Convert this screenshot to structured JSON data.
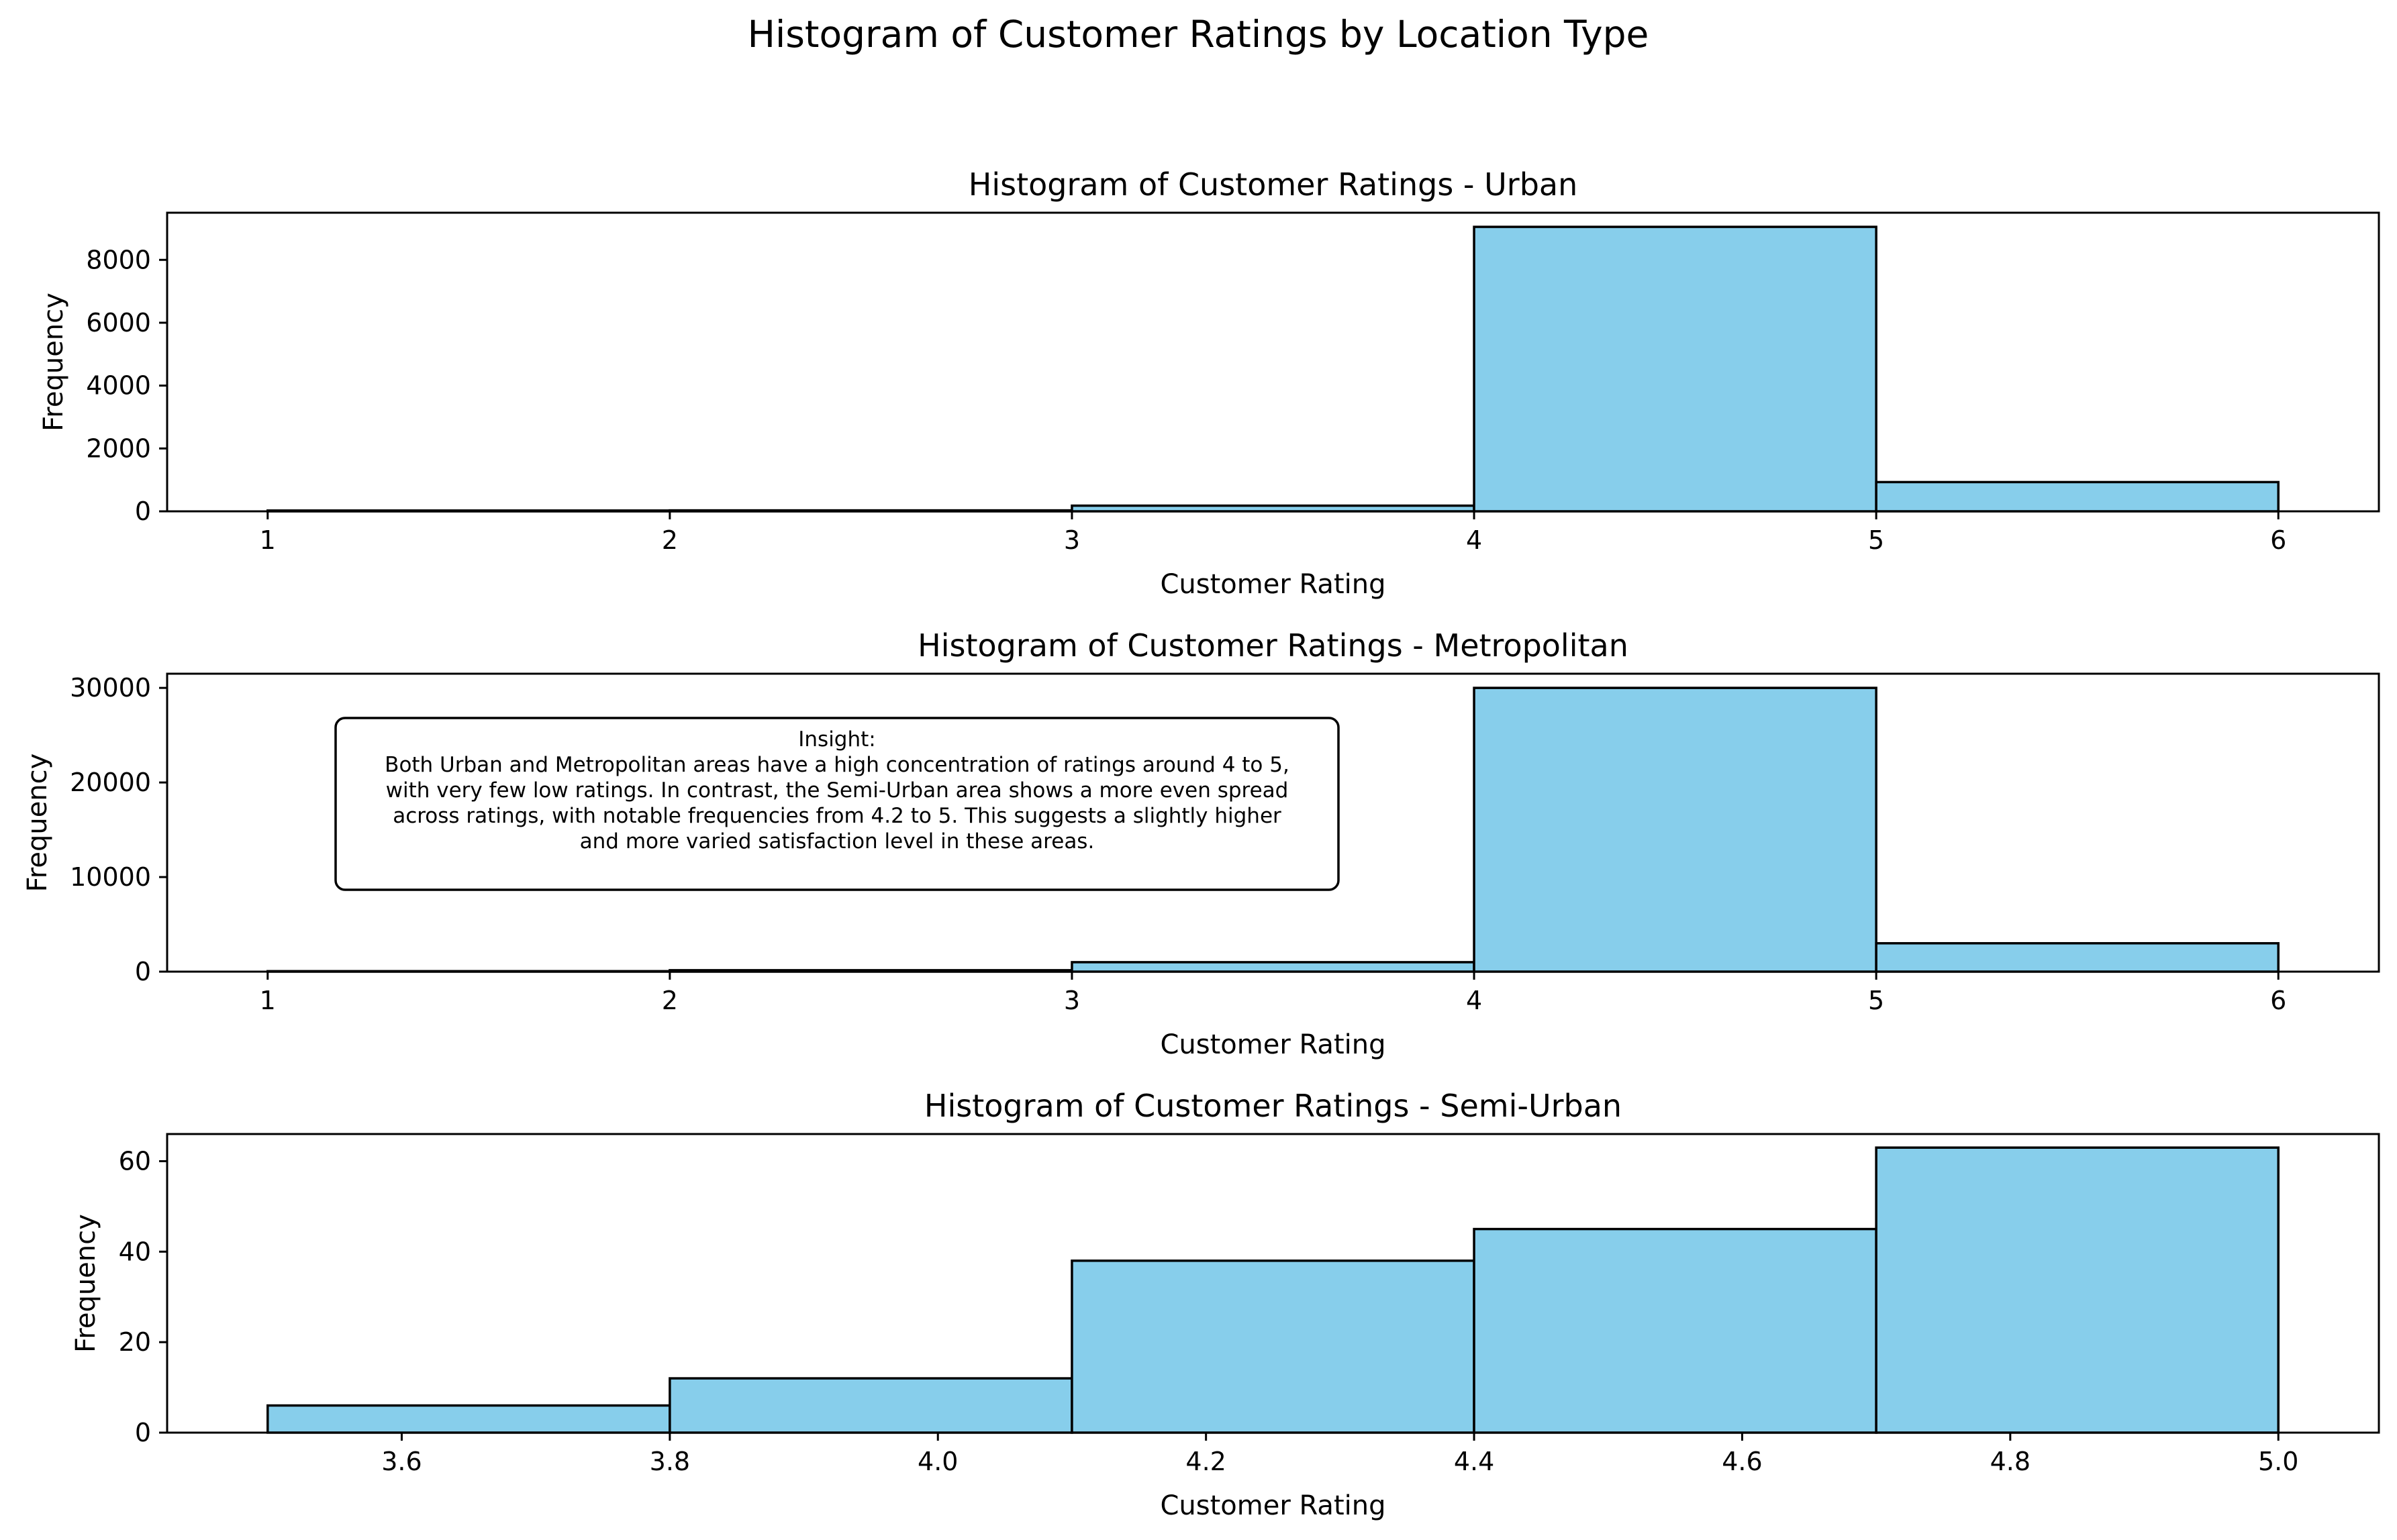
{
  "figure": {
    "title": "Histogram of Customer Ratings by Location Type"
  },
  "colors": {
    "bar_fill": "#87ceeb",
    "bar_edge": "#000000",
    "axes": "#000000",
    "background": "#ffffff"
  },
  "annotation": {
    "panel": 1,
    "lines": [
      "Insight:",
      "Both Urban and Metropolitan areas have a high concentration of ratings around 4 to 5,",
      "with very few low ratings. In contrast, the Semi-Urban area shows a more even spread",
      "across ratings, with notable frequencies from 4.2 to 5. This suggests a slightly higher",
      "and more varied satisfaction level in these areas."
    ]
  },
  "chart_data": [
    {
      "type": "bar",
      "histogram": true,
      "title": "Histogram of Customer Ratings - Urban",
      "xlabel": "Customer Rating",
      "ylabel": "Frequency",
      "bin_edges": [
        1,
        2,
        3,
        4,
        5,
        6
      ],
      "values": [
        25,
        30,
        180,
        9050,
        930
      ],
      "xlim": [
        0.75,
        6.25
      ],
      "ylim": [
        0,
        9500
      ],
      "xticks": [
        1,
        2,
        3,
        4,
        5,
        6
      ],
      "xtick_labels": [
        "1",
        "2",
        "3",
        "4",
        "5",
        "6"
      ],
      "yticks": [
        0,
        2000,
        4000,
        6000,
        8000
      ],
      "ytick_labels": [
        "0",
        "2000",
        "4000",
        "6000",
        "8000"
      ],
      "grid": false,
      "legend": "none"
    },
    {
      "type": "bar",
      "histogram": true,
      "title": "Histogram of Customer Ratings - Metropolitan",
      "xlabel": "Customer Rating",
      "ylabel": "Frequency",
      "bin_edges": [
        1,
        2,
        3,
        4,
        5,
        6
      ],
      "values": [
        50,
        150,
        1000,
        30000,
        3000
      ],
      "xlim": [
        0.75,
        6.25
      ],
      "ylim": [
        0,
        31500
      ],
      "xticks": [
        1,
        2,
        3,
        4,
        5,
        6
      ],
      "xtick_labels": [
        "1",
        "2",
        "3",
        "4",
        "5",
        "6"
      ],
      "yticks": [
        0,
        10000,
        20000,
        30000
      ],
      "ytick_labels": [
        "0",
        "10000",
        "20000",
        "30000"
      ],
      "grid": false,
      "legend": "none"
    },
    {
      "type": "bar",
      "histogram": true,
      "title": "Histogram of Customer Ratings - Semi-Urban",
      "xlabel": "Customer Rating",
      "ylabel": "Frequency",
      "bin_edges": [
        3.5,
        3.8,
        4.1,
        4.4,
        4.7,
        5.0
      ],
      "values": [
        6,
        12,
        38,
        45,
        63
      ],
      "xlim": [
        3.425,
        5.075
      ],
      "ylim": [
        0,
        66
      ],
      "xticks": [
        3.6,
        3.8,
        4.0,
        4.2,
        4.4,
        4.6,
        4.8,
        5.0
      ],
      "xtick_labels": [
        "3.6",
        "3.8",
        "4.0",
        "4.2",
        "4.4",
        "4.6",
        "4.8",
        "5.0"
      ],
      "yticks": [
        0,
        20,
        40,
        60
      ],
      "ytick_labels": [
        "0",
        "20",
        "40",
        "60"
      ],
      "grid": false,
      "legend": "none"
    }
  ]
}
